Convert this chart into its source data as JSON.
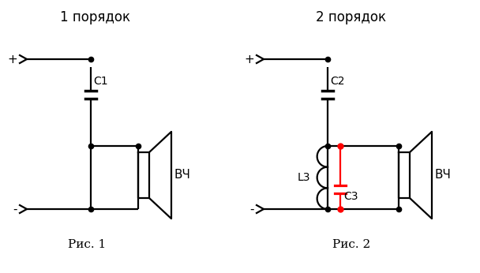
{
  "bg_color": "#ffffff",
  "line_color": "#000000",
  "red_color": "#ff0000",
  "title1": "1 порядок",
  "title2": "2 порядок",
  "caption1": "Рис. 1",
  "caption2": "Рис. 2",
  "label_C1": "С1",
  "label_C2": "С2",
  "label_C3": "С3",
  "label_L3": "L3",
  "label_VCH1": "ВЧ",
  "label_VCH2": "ВЧ",
  "label_plus1": "+",
  "label_plus2": "+",
  "label_minus1": "-",
  "label_minus2": "-",
  "figsize": [
    6.08,
    3.46
  ],
  "dpi": 100
}
